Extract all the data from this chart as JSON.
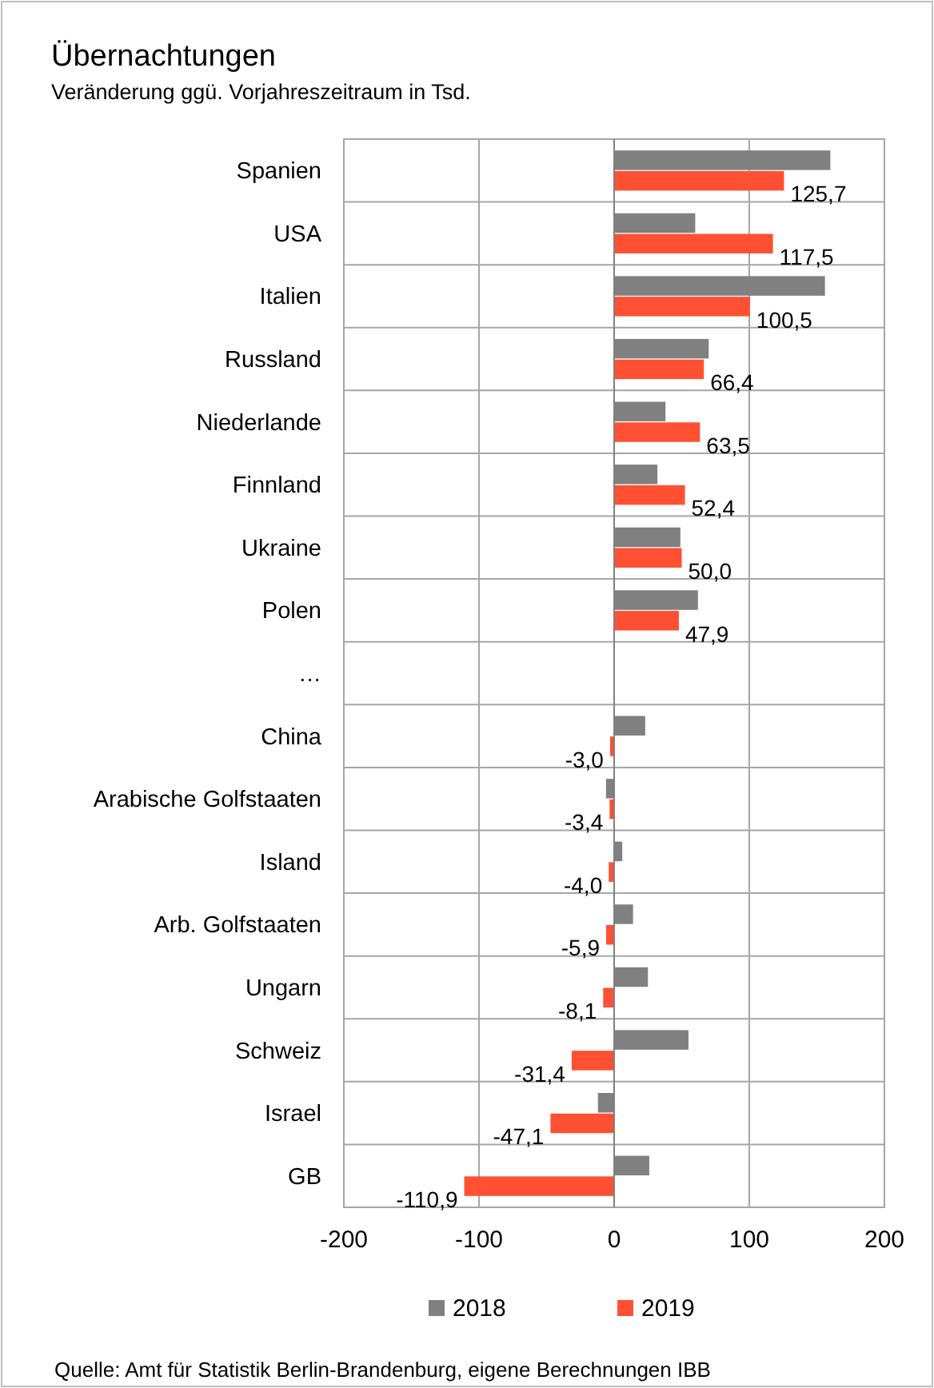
{
  "chart_data": {
    "type": "bar",
    "orientation": "horizontal",
    "title": "Übernachtungen",
    "subtitle": "Veränderung  ggü. Vorjahreszeitraum  in Tsd.",
    "categories": [
      "Spanien",
      "USA",
      "Italien",
      "Russland",
      "Niederlande",
      "Finnland",
      "Ukraine",
      "Polen",
      "…",
      "China",
      "Arabische Golfstaaten",
      "Island",
      "Arb. Golfstaaten",
      "Ungarn",
      "Schweiz",
      "Israel",
      "GB"
    ],
    "series": [
      {
        "name": "2018",
        "color": "#808080",
        "values": [
          160,
          60,
          156,
          70,
          38,
          32,
          49,
          62,
          null,
          23,
          -6,
          6,
          14,
          25,
          55,
          -12,
          26
        ]
      },
      {
        "name": "2019",
        "color": "#ff5033",
        "values": [
          125.7,
          117.5,
          100.5,
          66.4,
          63.5,
          52.4,
          50.0,
          47.9,
          null,
          -3.0,
          -3.4,
          -4.0,
          -5.9,
          -8.1,
          -31.4,
          -47.1,
          -110.9
        ],
        "value_labels": [
          "125,7",
          "117,5",
          "100,5",
          "66,4",
          "63,5",
          "52,4",
          "50,0",
          "47,9",
          null,
          "-3,0",
          "-3,4",
          "-4,0",
          "-5,9",
          "-8,1",
          "-31,4",
          "-47,1",
          "-110,9"
        ]
      }
    ],
    "xlim": [
      -200,
      200
    ],
    "xticks": [
      -200,
      -100,
      0,
      100,
      200
    ],
    "grid": true,
    "legend": "bottom",
    "annotations": [
      "Quelle: Amt für Statistik Berlin-Brandenburg, eigene Berechnungen IBB"
    ]
  }
}
